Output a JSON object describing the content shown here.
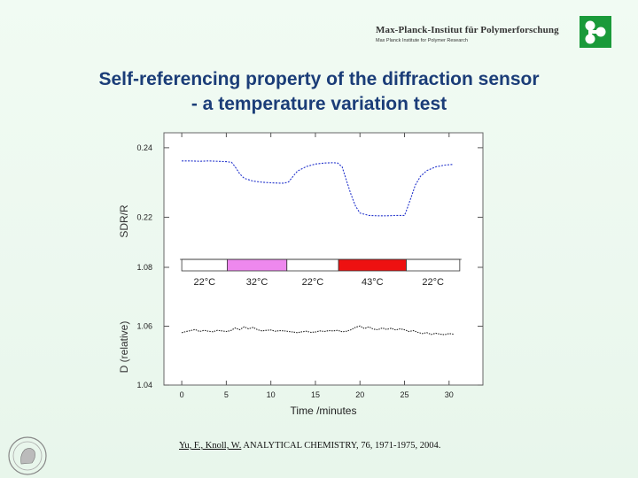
{
  "header": {
    "institute_name": "Max-Planck-Institut für Polymerforschung",
    "institute_subtitle": "Max Planck Institute for Polymer Research"
  },
  "slide": {
    "title_line1": "Self-referencing property of the diffraction sensor",
    "title_line2": "- a temperature variation test"
  },
  "chart_data": {
    "type": "line",
    "xlabel": "Time /minutes",
    "xlim": [
      -2,
      33.8
    ],
    "xticks": [
      0,
      5,
      10,
      15,
      20,
      25,
      30
    ],
    "top_panel": {
      "ylabel": "SDR/R",
      "ylim": [
        0.2117,
        0.2443
      ],
      "yticks": [
        0.22,
        0.24
      ],
      "series": [
        {
          "name": "SDR/R",
          "color": "#2233cc",
          "x": [
            0,
            1,
            2,
            3,
            4,
            5,
            5.6,
            6,
            6.5,
            7,
            8,
            9,
            10,
            11,
            11.5,
            12,
            12.5,
            13,
            14,
            15,
            16,
            17,
            17.5,
            18,
            18.5,
            19,
            19.5,
            20,
            21,
            22,
            23,
            24,
            25,
            25.3,
            25.8,
            26.2,
            26.8,
            27.5,
            28.5,
            29.5,
            30.5
          ],
          "y": [
            0.2362,
            0.2362,
            0.2361,
            0.2362,
            0.2361,
            0.236,
            0.2358,
            0.2345,
            0.2325,
            0.2312,
            0.2304,
            0.2301,
            0.2299,
            0.2298,
            0.2298,
            0.2302,
            0.2318,
            0.2333,
            0.2346,
            0.2353,
            0.2356,
            0.2357,
            0.2356,
            0.2345,
            0.2305,
            0.2265,
            0.2232,
            0.2212,
            0.2205,
            0.2204,
            0.2204,
            0.2205,
            0.2205,
            0.2225,
            0.2262,
            0.2292,
            0.2318,
            0.2334,
            0.2345,
            0.235,
            0.2352
          ]
        }
      ]
    },
    "bottom_panel": {
      "ylabel": "D (relative)",
      "ylim": [
        1.04,
        1.08
      ],
      "yticks": [
        1.04,
        1.06,
        1.08
      ],
      "series": [
        {
          "name": "D",
          "color": "#222222",
          "x": [
            0,
            0.5,
            1,
            1.5,
            2,
            2.5,
            3,
            3.5,
            4,
            4.5,
            5,
            5.5,
            6,
            6.5,
            7,
            7.5,
            8,
            8.5,
            9,
            9.5,
            10,
            10.5,
            11,
            11.5,
            12,
            12.5,
            13,
            13.5,
            14,
            14.5,
            15,
            15.5,
            16,
            16.5,
            17,
            17.5,
            18,
            18.5,
            19,
            19.5,
            20,
            20.5,
            21,
            21.5,
            22,
            22.5,
            23,
            23.5,
            24,
            24.5,
            25,
            25.5,
            26,
            26.5,
            27,
            27.5,
            28,
            28.5,
            29,
            29.5,
            30,
            30.5
          ],
          "y": [
            1.0578,
            1.0582,
            1.0585,
            1.0589,
            1.0582,
            1.0586,
            1.0583,
            1.0581,
            1.0586,
            1.0584,
            1.0582,
            1.0585,
            1.0594,
            1.0588,
            1.0598,
            1.0591,
            1.0596,
            1.0588,
            1.0584,
            1.0586,
            1.0587,
            1.0583,
            1.0585,
            1.0584,
            1.0582,
            1.058,
            1.0578,
            1.0581,
            1.0583,
            1.0579,
            1.058,
            1.0584,
            1.0582,
            1.0585,
            1.0584,
            1.0586,
            1.0581,
            1.0583,
            1.0588,
            1.0596,
            1.0601,
            1.0592,
            1.0598,
            1.059,
            1.0588,
            1.0594,
            1.0589,
            1.0593,
            1.0587,
            1.0591,
            1.0588,
            1.0582,
            1.0585,
            1.0579,
            1.0575,
            1.0578,
            1.0572,
            1.0576,
            1.0573,
            1.0571,
            1.0575,
            1.0573
          ]
        }
      ]
    },
    "temperature_segments": [
      {
        "label": "22°C",
        "start": 0,
        "end": 5.1,
        "color": "#ffffff"
      },
      {
        "label": "32°C",
        "start": 5.1,
        "end": 11.8,
        "color": "#ee88ee"
      },
      {
        "label": "22°C",
        "start": 11.8,
        "end": 17.6,
        "color": "#ffffff"
      },
      {
        "label": "43°C",
        "start": 17.6,
        "end": 25.2,
        "color": "#ee1111"
      },
      {
        "label": "22°C",
        "start": 25.2,
        "end": 31.2,
        "color": "#ffffff"
      }
    ]
  },
  "citation": {
    "authors": "Yu, F., Knoll, W.",
    "journal": " ANALYTICAL CHEMISTRY, 76, 1971-1975, 2004."
  }
}
